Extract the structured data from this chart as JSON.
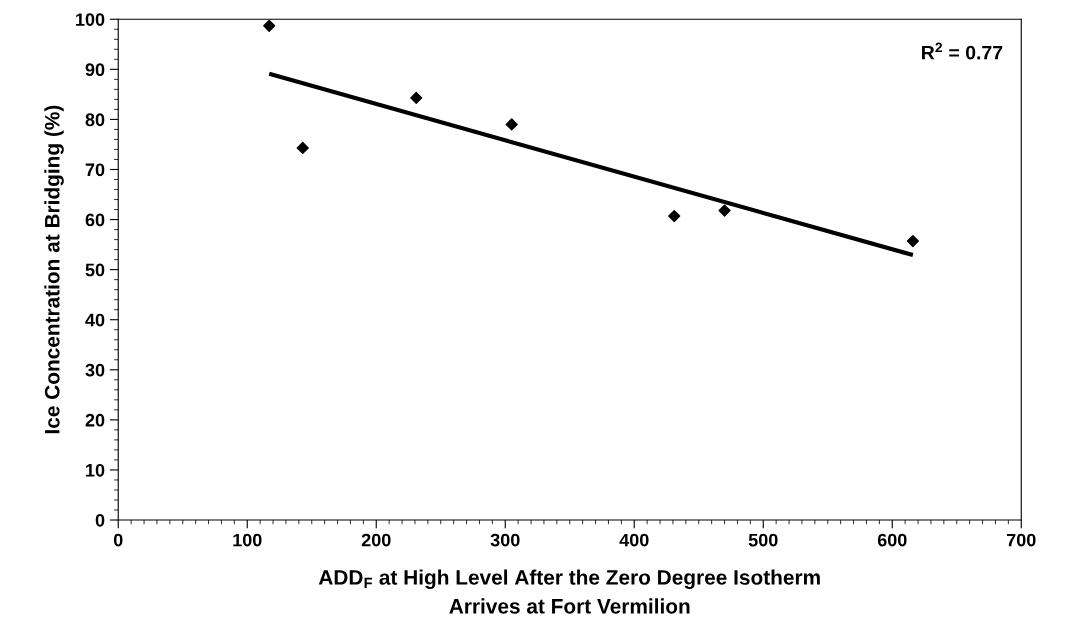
{
  "chart_data": {
    "type": "scatter",
    "xlabel": "ADD$_{F}$ at High Level After the Zero Degree Isotherm\nArrives at Fort Vermilion",
    "ylabel": "Ice Concentration at Bridging (%)",
    "series": [
      {
        "color": "#000000",
        "marker": "diamond",
        "x": [
          117,
          143,
          231,
          305,
          431,
          470,
          616
        ],
        "values": [
          98.7,
          74.3,
          84.3,
          79.0,
          60.7,
          61.8,
          55.7
        ]
      },
      {
        "type": "line",
        "color": "#000000",
        "marker": "none",
        "line_style": "solid",
        "x": [
          117,
          616
        ],
        "values": [
          89.1,
          52.9
        ]
      }
    ],
    "annotations": [
      "R$^{2}$ = 0.77"
    ],
    "xlim": [
      0,
      700
    ],
    "xticks": [
      0,
      100,
      200,
      300,
      400,
      500,
      600,
      700
    ],
    "ylim": [
      0,
      100
    ],
    "yticks": [
      0,
      10,
      20,
      30,
      40,
      50,
      60,
      70,
      80,
      90,
      100
    ],
    "grid": false,
    "legend": false
  }
}
